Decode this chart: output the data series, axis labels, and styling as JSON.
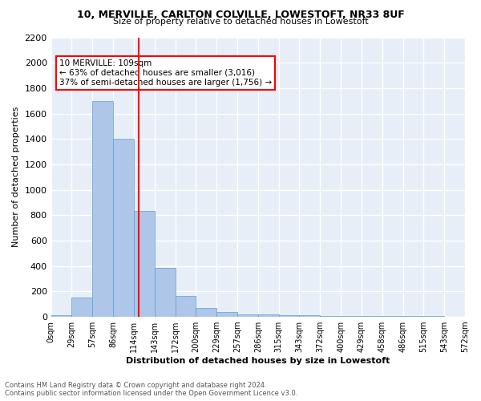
{
  "title_line1": "10, MERVILLE, CARLTON COLVILLE, LOWESTOFT, NR33 8UF",
  "title_line2": "Size of property relative to detached houses in Lowestoft",
  "xlabel": "Distribution of detached houses by size in Lowestoft",
  "ylabel": "Number of detached properties",
  "bar_values": [
    15,
    155,
    1700,
    1400,
    835,
    385,
    165,
    70,
    40,
    20,
    20,
    15,
    10,
    5,
    5,
    5,
    5,
    5,
    5
  ],
  "bar_labels": [
    "0sqm",
    "29sqm",
    "57sqm",
    "86sqm",
    "114sqm",
    "143sqm",
    "172sqm",
    "200sqm",
    "229sqm",
    "257sqm",
    "286sqm",
    "315sqm",
    "343sqm",
    "372sqm",
    "400sqm",
    "429sqm",
    "458sqm",
    "486sqm",
    "515sqm",
    "543sqm",
    "572sqm"
  ],
  "bar_color": "#aec6e8",
  "bar_edge_color": "#5a9fd4",
  "bar_edge_width": 0.5,
  "property_line_x": 3.75,
  "property_size_sqm": 109,
  "annotation_text_line1": "10 MERVILLE: 109sqm",
  "annotation_text_line2": "← 63% of detached houses are smaller (3,016)",
  "annotation_text_line3": "37% of semi-detached houses are larger (1,756) →",
  "annotation_box_color": "white",
  "annotation_box_edge_color": "red",
  "property_line_color": "red",
  "ylim_max": 2200,
  "ytick_step": 200,
  "background_color": "#e8eef7",
  "grid_color": "white",
  "footer_line1": "Contains HM Land Registry data © Crown copyright and database right 2024.",
  "footer_line2": "Contains public sector information licensed under the Open Government Licence v3.0."
}
